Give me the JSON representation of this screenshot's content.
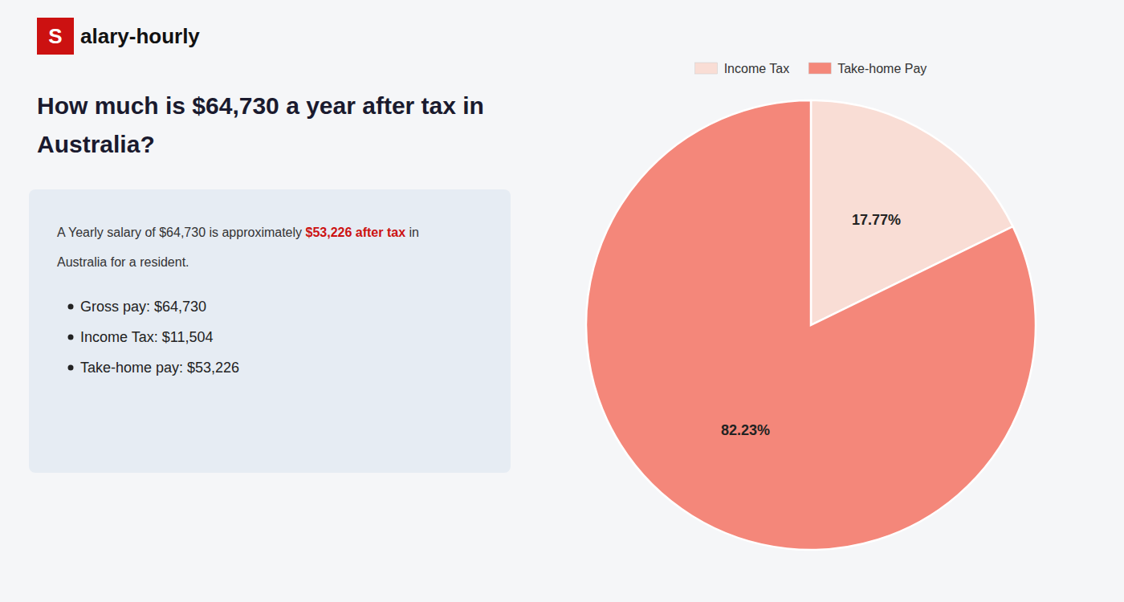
{
  "chart_data": {
    "type": "pie",
    "title": "How much is $64,730 a year after tax in Australia?",
    "annotations": [
      "S",
      "alary-hourly",
      "A Yearly salary of $64,730 is approximately ",
      "$53,226 after tax",
      " in",
      "Australia for a resident.",
      "Gross pay: $64,730",
      "Income Tax: $11,504",
      "Take-home pay: $53,226"
    ],
    "categories": [
      "Income Tax",
      "Take-home Pay"
    ],
    "values": [
      17.77,
      82.23
    ],
    "value_labels": [
      "17.77%",
      "82.23%"
    ],
    "colors": [
      "#f9ddd5",
      "#f4877a"
    ],
    "data_labels": true,
    "legend": "top"
  }
}
